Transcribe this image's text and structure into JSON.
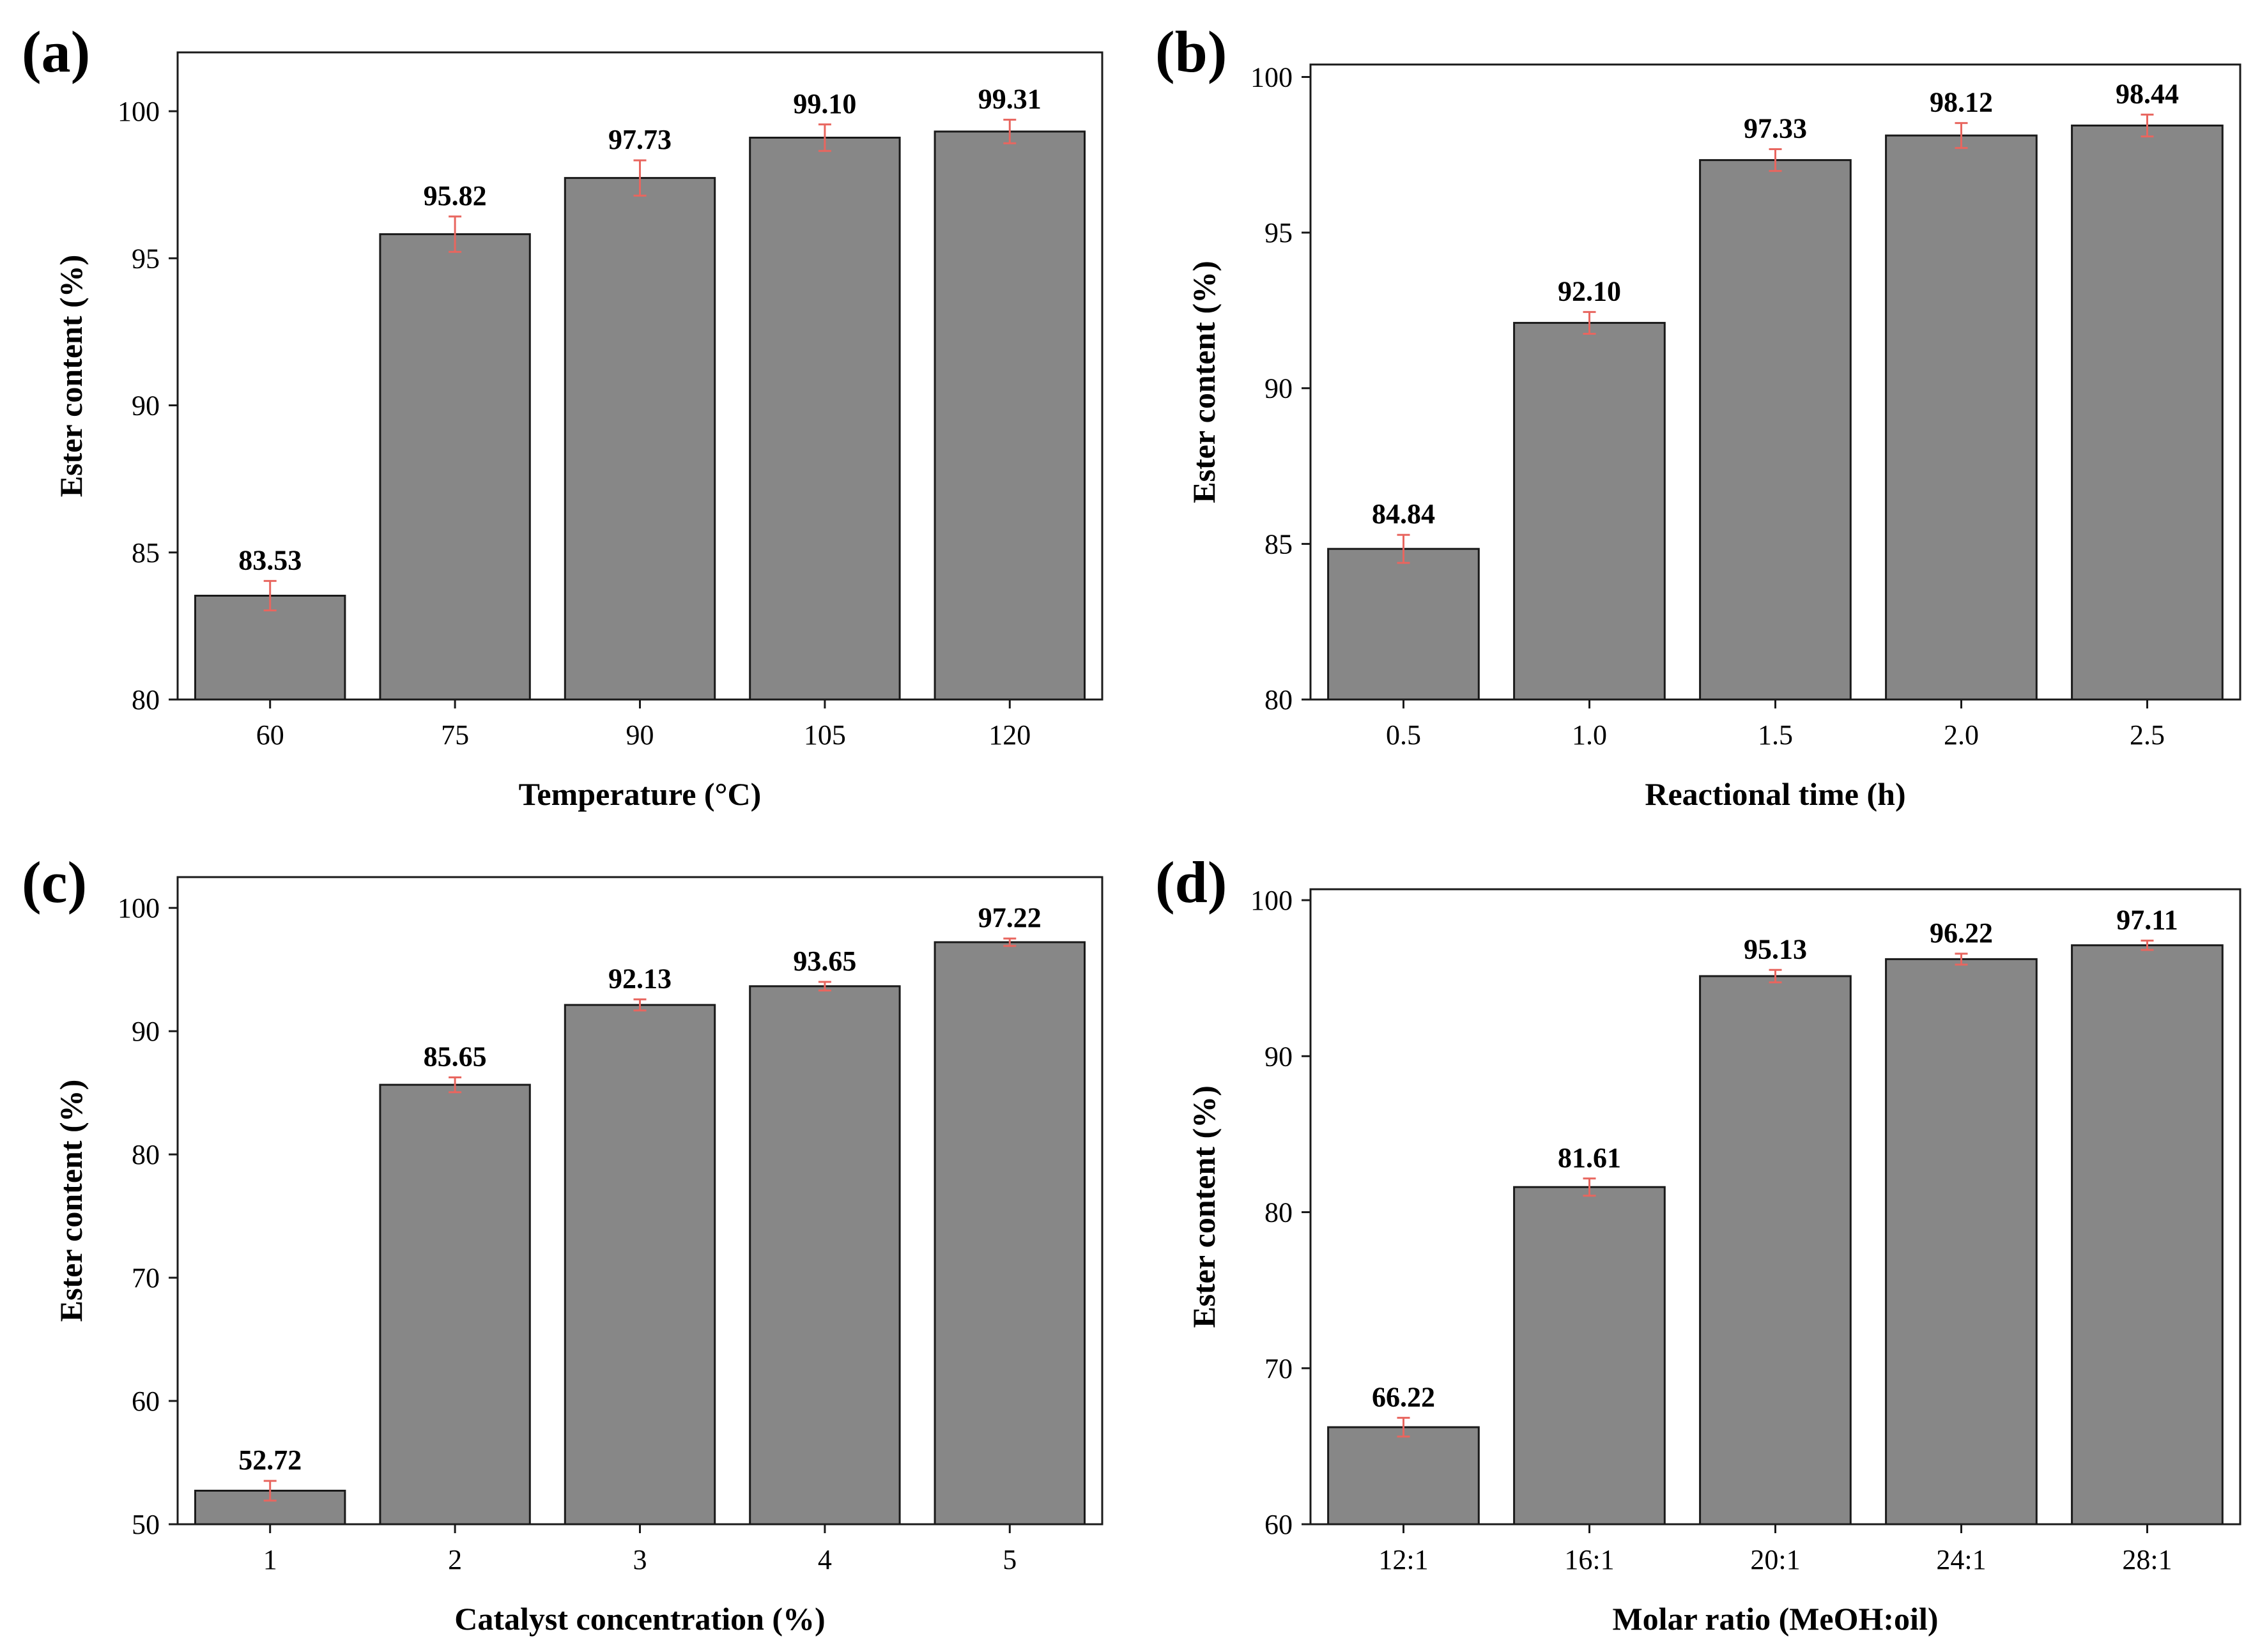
{
  "figure": {
    "bar_color": "#878787",
    "bar_edge_color": "#1a1a1a",
    "error_color": "#e8665f",
    "axis_color": "#1a1a1a",
    "text_color": "#000000"
  },
  "chart_data": [
    {
      "panel": "(a)",
      "type": "bar",
      "categories": [
        "60",
        "75",
        "90",
        "105",
        "120"
      ],
      "values": [
        83.53,
        95.82,
        97.73,
        99.1,
        99.31
      ],
      "value_labels": [
        "83.53",
        "95.82",
        "97.73",
        "99.10",
        "99.31"
      ],
      "error": [
        0.5,
        0.6,
        0.6,
        0.45,
        0.4
      ],
      "xlabel": "Temperature (°C)",
      "ylabel": "Ester content (%)",
      "ylim": [
        80,
        102
      ],
      "yticks": [
        80,
        85,
        90,
        95,
        100
      ],
      "ytick_labels": [
        "80",
        "85",
        "90",
        "95",
        "100"
      ],
      "grid": false
    },
    {
      "panel": "(b)",
      "type": "bar",
      "categories": [
        "0.5",
        "1.0",
        "1.5",
        "2.0",
        "2.5"
      ],
      "values": [
        84.84,
        92.1,
        97.33,
        98.12,
        98.44
      ],
      "value_labels": [
        "84.84",
        "92.10",
        "97.33",
        "98.12",
        "98.44"
      ],
      "error": [
        0.45,
        0.35,
        0.35,
        0.4,
        0.35
      ],
      "xlabel": "Reactional time (h)",
      "ylabel": "Ester content (%)",
      "ylim": [
        80,
        100.4
      ],
      "yticks": [
        80,
        85,
        90,
        95,
        100
      ],
      "ytick_labels": [
        "80",
        "85",
        "90",
        "95",
        "100"
      ],
      "grid": false
    },
    {
      "panel": "(c)",
      "type": "bar",
      "categories": [
        "1",
        "2",
        "3",
        "4",
        "5"
      ],
      "values": [
        52.72,
        85.65,
        92.13,
        93.65,
        97.22
      ],
      "value_labels": [
        "52.72",
        "85.65",
        "92.13",
        "93.65",
        "97.22"
      ],
      "error": [
        0.8,
        0.6,
        0.45,
        0.35,
        0.3
      ],
      "xlabel": "Catalyst concentration (%)",
      "ylabel": "Ester content (%)",
      "ylim": [
        50,
        102.5
      ],
      "yticks": [
        50,
        60,
        70,
        80,
        90,
        100
      ],
      "ytick_labels": [
        "50",
        "60",
        "70",
        "80",
        "90",
        "100"
      ],
      "grid": false
    },
    {
      "panel": "(d)",
      "type": "bar",
      "categories": [
        "12:1",
        "16:1",
        "20:1",
        "24:1",
        "28:1"
      ],
      "values": [
        66.22,
        81.61,
        95.13,
        96.22,
        97.11
      ],
      "value_labels": [
        "66.22",
        "81.61",
        "95.13",
        "96.22",
        "97.11"
      ],
      "error": [
        0.6,
        0.55,
        0.4,
        0.35,
        0.3
      ],
      "xlabel": "Molar ratio (MeOH:oil)",
      "ylabel": "Ester content (%)",
      "ylim": [
        60,
        100.7
      ],
      "yticks": [
        60,
        70,
        80,
        90,
        100
      ],
      "ytick_labels": [
        "60",
        "70",
        "80",
        "90",
        "100"
      ],
      "grid": false
    }
  ]
}
